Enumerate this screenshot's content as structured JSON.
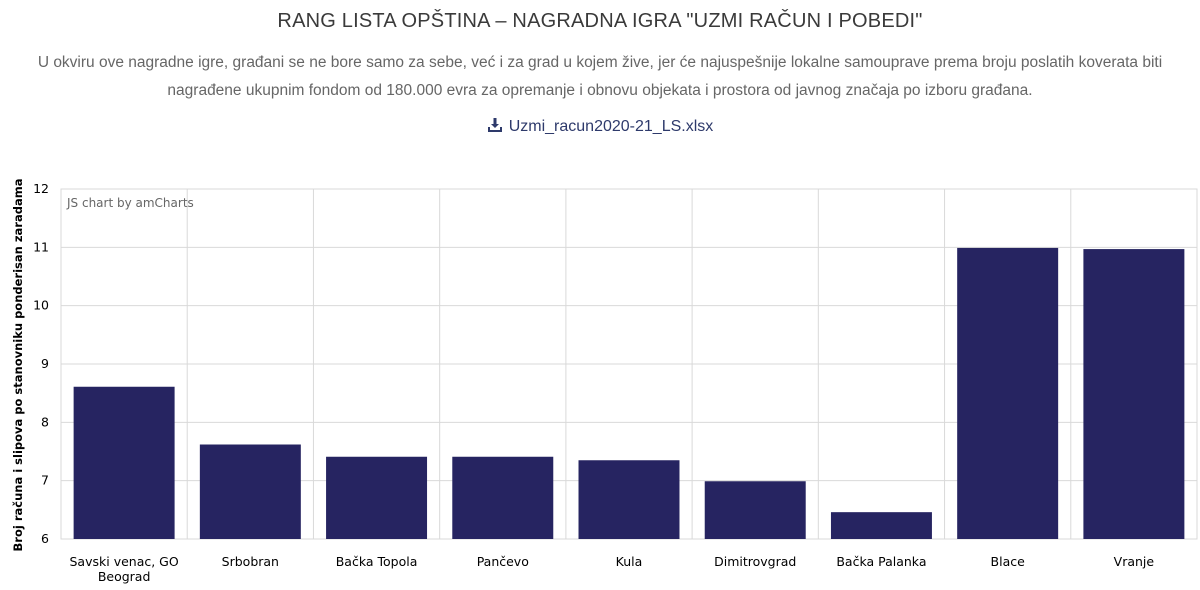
{
  "page": {
    "title": "RANG LISTA OPŠTINA – NAGRADNA IGRA \"UZMI RAČUN I POBEDI\"",
    "intro": "U okviru ove nagradne igre, građani se ne bore samo za sebe, već i za grad u kojem žive, jer će najuspešnije lokalne samouprave prema broju poslatih koverata biti nagrađene ukupnim fondom od 180.000 evra za opremanje i obnovu objekata i prostora od javnog značaja po izboru građana.",
    "download_label": "Uzmi_racun2020-21_LS.xlsx",
    "download_icon": "download-icon",
    "credit": "JS chart by amCharts"
  },
  "colors": {
    "bar": "#262461",
    "link": "#2e3a6b",
    "grid": "#d9d9d9"
  },
  "chart_data": {
    "type": "bar",
    "title": "",
    "xlabel": "",
    "ylabel": "Broj računa i slipova po stanovniku ponderisan zaradama",
    "ylim": [
      6,
      12
    ],
    "yticks": [
      "6",
      "7",
      "8",
      "9",
      "10",
      "11",
      "12"
    ],
    "categories": [
      [
        "Savski venac, GO",
        "Beograd"
      ],
      [
        "Srbobran"
      ],
      [
        "Bačka Topola"
      ],
      [
        "Pančevo"
      ],
      [
        "Kula"
      ],
      [
        "Dimitrovgrad"
      ],
      [
        "Bačka Palanka"
      ],
      [
        "Blace"
      ],
      [
        "Vranje"
      ]
    ],
    "values": [
      8.61,
      7.62,
      7.41,
      7.41,
      7.35,
      6.99,
      6.46,
      10.99,
      10.97
    ],
    "grid": true
  }
}
